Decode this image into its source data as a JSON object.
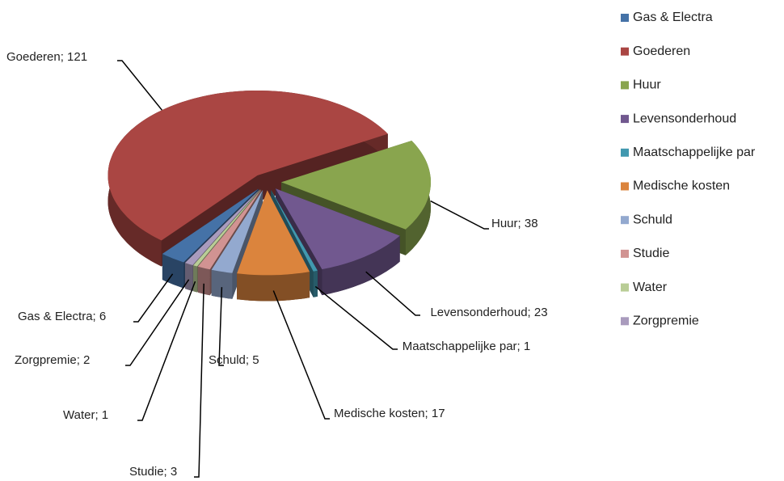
{
  "chart_data": {
    "type": "pie",
    "categories": [
      "Gas & Electra",
      "Goederen",
      "Huur",
      "Levensonderhoud",
      "Maatschappelijke par",
      "Medische kosten",
      "Schuld",
      "Studie",
      "Water",
      "Zorgpremie"
    ],
    "values": [
      6,
      121,
      38,
      23,
      1,
      17,
      5,
      3,
      1,
      2
    ],
    "value_labels": [
      "Gas & Electra; 6",
      "Goederen; 121",
      "Huur; 38",
      "Levensonderhoud; 23",
      "Maatschappelijke par; 1",
      "Medische kosten; 17",
      "Schuld; 5",
      "Studie; 3",
      "Water; 1",
      "Zorgpremie; 2"
    ],
    "colors": [
      "#4572a7",
      "#aa4643",
      "#89a54e",
      "#71588f",
      "#4198af",
      "#db843d",
      "#93a9cf",
      "#d19392",
      "#b9cd96",
      "#a99bbd"
    ],
    "legend": "right"
  }
}
